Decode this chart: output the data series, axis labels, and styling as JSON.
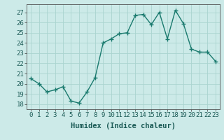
{
  "x": [
    0,
    1,
    2,
    3,
    4,
    5,
    6,
    7,
    8,
    9,
    10,
    11,
    12,
    13,
    14,
    15,
    16,
    17,
    18,
    19,
    20,
    21,
    22,
    23
  ],
  "y": [
    20.5,
    20.0,
    19.2,
    19.4,
    19.7,
    18.3,
    18.1,
    19.2,
    20.6,
    24.0,
    24.4,
    24.9,
    25.0,
    26.7,
    26.8,
    25.8,
    27.0,
    24.4,
    27.2,
    25.9,
    23.4,
    23.1,
    23.1,
    22.2
  ],
  "line_color": "#1a7a6e",
  "marker": "+",
  "marker_size": 4,
  "bg_color": "#cceae8",
  "grid_color": "#aad4d0",
  "xlabel": "Humidex (Indice chaleur)",
  "ylim": [
    17.5,
    27.8
  ],
  "yticks": [
    18,
    19,
    20,
    21,
    22,
    23,
    24,
    25,
    26,
    27
  ],
  "xticks": [
    0,
    1,
    2,
    3,
    4,
    5,
    6,
    7,
    8,
    9,
    10,
    11,
    12,
    13,
    14,
    15,
    16,
    17,
    18,
    19,
    20,
    21,
    22,
    23
  ],
  "label_fontsize": 7,
  "tick_fontsize": 6.5,
  "xlabel_fontsize": 7.5,
  "line_width": 1.0
}
